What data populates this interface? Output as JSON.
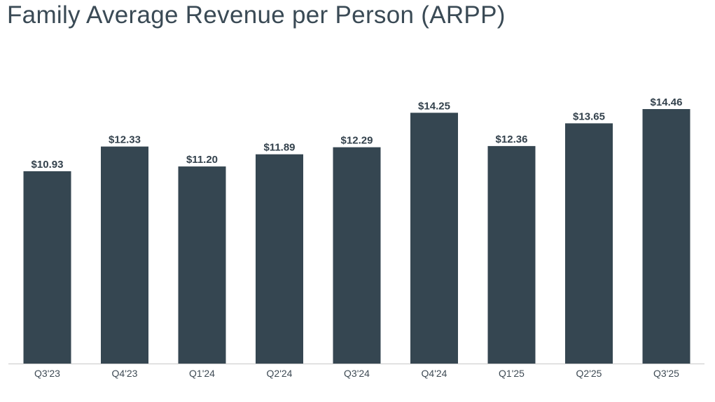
{
  "title": "Family Average Revenue per Person (ARPP)",
  "colors": {
    "bar": "#354651",
    "axis": "#c8c8c8",
    "title": "#3a4a55"
  },
  "chart_data": {
    "type": "bar",
    "title": "Family Average Revenue per Person (ARPP)",
    "xlabel": "",
    "ylabel": "",
    "categories": [
      "Q3'23",
      "Q4'23",
      "Q1'24",
      "Q2'24",
      "Q3'24",
      "Q4'24",
      "Q1'25",
      "Q2'25",
      "Q3'25"
    ],
    "values": [
      10.93,
      12.33,
      11.2,
      11.89,
      12.29,
      14.25,
      12.36,
      13.65,
      14.46
    ],
    "labels": [
      "$10.93",
      "$12.33",
      "$11.20",
      "$11.89",
      "$12.29",
      "$14.25",
      "$12.36",
      "$13.65",
      "$14.46"
    ],
    "ylim": [
      0,
      14.46
    ],
    "grid": false,
    "legend": "none"
  }
}
